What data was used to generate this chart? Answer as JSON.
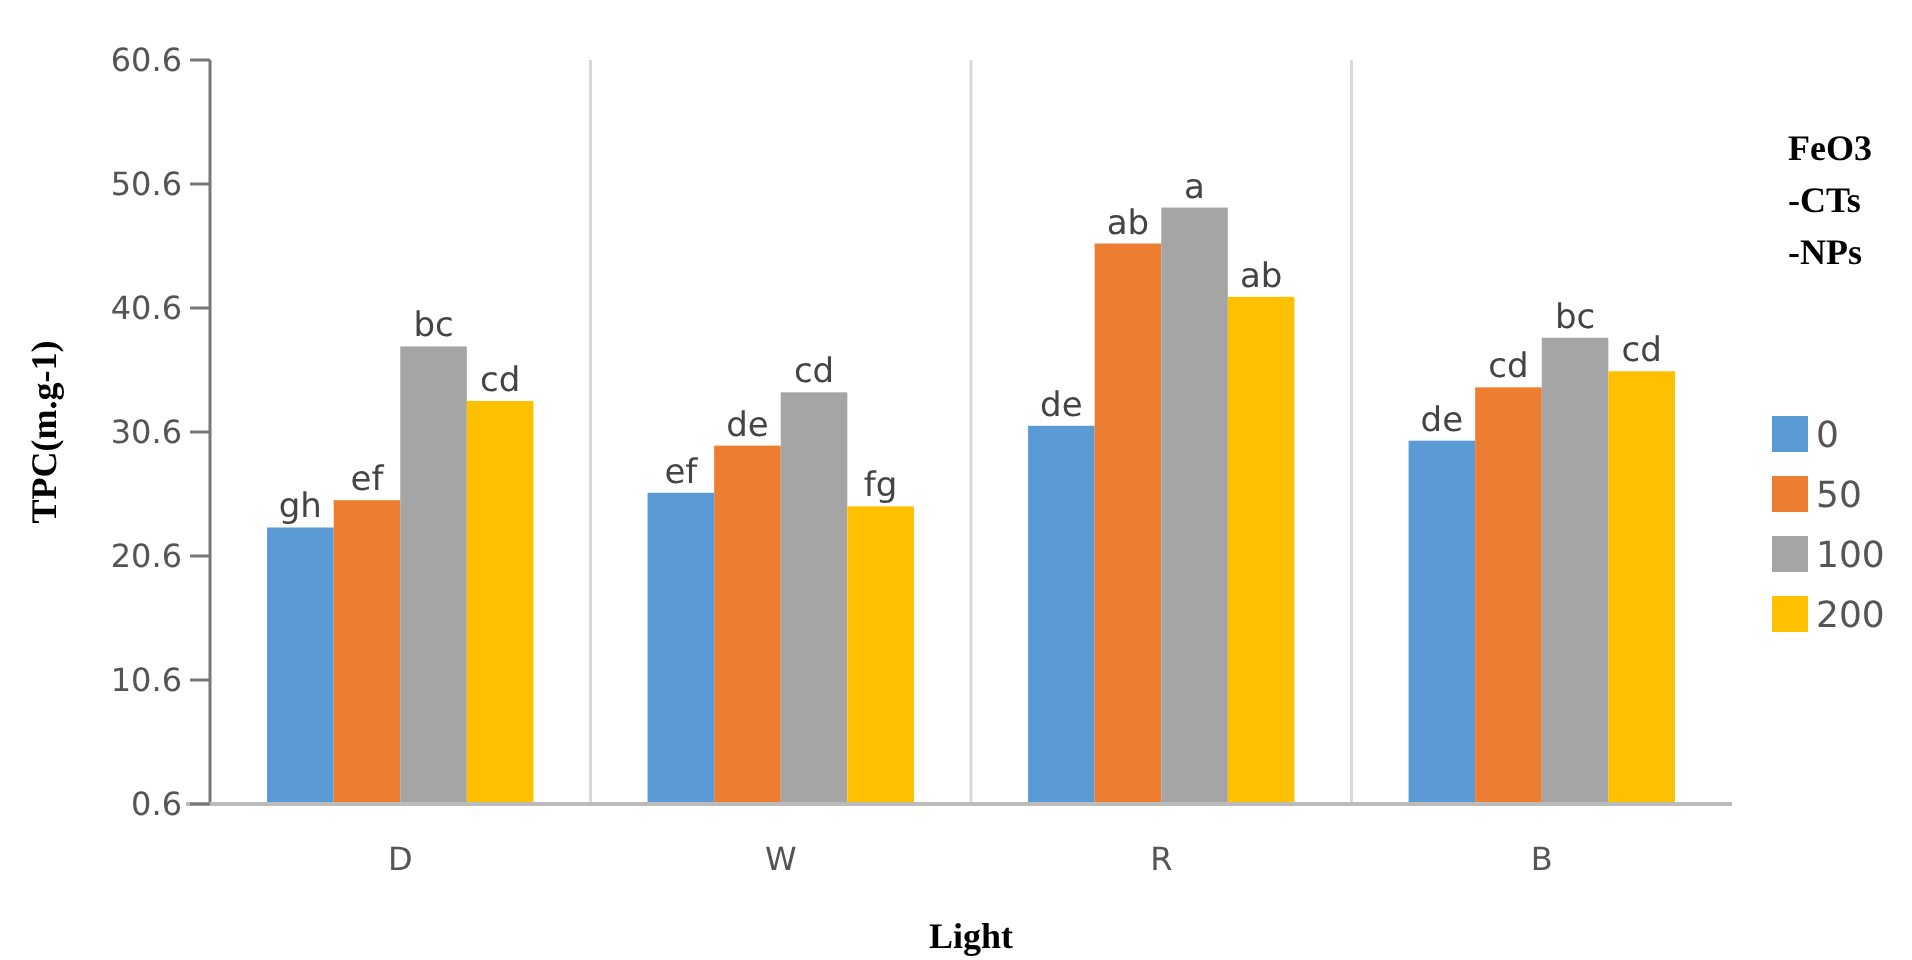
{
  "chart_data": {
    "type": "bar",
    "xlabel": "Light",
    "ylabel": "TPC(m.g-1)",
    "legend_title": "FeO3 -CTs -NPs",
    "categories": [
      "D",
      "W",
      "R",
      "B"
    ],
    "series": [
      {
        "name": "0",
        "color": "#5b9bd5",
        "values": [
          22.9,
          25.7,
          31.1,
          29.9
        ],
        "value_labels": [
          "gh",
          "ef",
          "de",
          "de"
        ]
      },
      {
        "name": "50",
        "color": "#ed7d31",
        "values": [
          25.1,
          29.5,
          45.8,
          34.2
        ],
        "value_labels": [
          "ef",
          "de",
          "ab",
          "cd"
        ]
      },
      {
        "name": "100",
        "color": "#a5a5a5",
        "values": [
          37.5,
          33.8,
          48.7,
          38.2
        ],
        "value_labels": [
          "bc",
          "cd",
          "a",
          "bc"
        ]
      },
      {
        "name": "200",
        "color": "#ffc000",
        "values": [
          33.1,
          24.6,
          41.5,
          35.5
        ],
        "value_labels": [
          "cd",
          "fg",
          "ab",
          "cd"
        ]
      }
    ],
    "ylim": [
      0.6,
      60.6
    ],
    "yticks": [
      0.6,
      10.6,
      20.6,
      30.6,
      40.6,
      50.6,
      60.6
    ],
    "grid": "x",
    "legend": "right"
  }
}
